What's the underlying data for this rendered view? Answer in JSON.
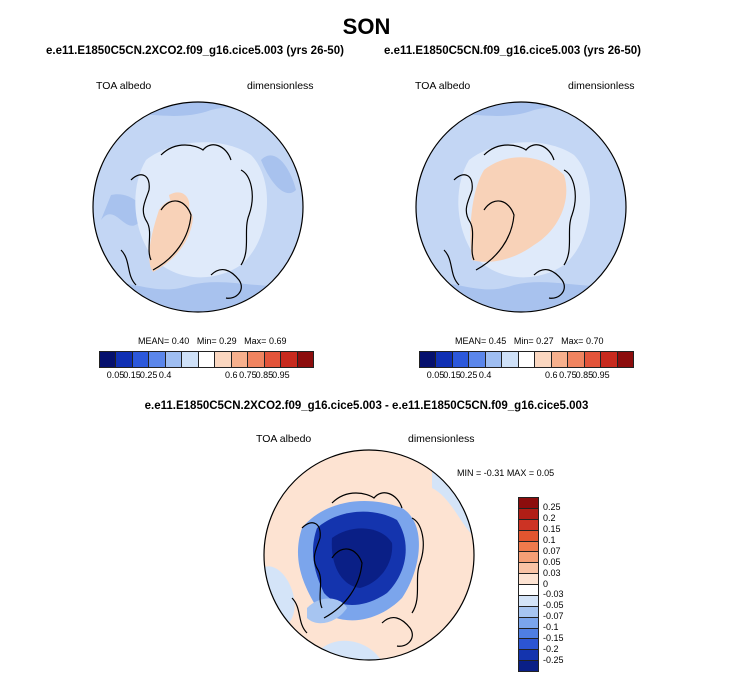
{
  "title": "SON",
  "panels": [
    {
      "case": "e.e11.E1850C5CN.2XCO2.f09_g16.cice5.003 (yrs 26-50)",
      "variable": "TOA albedo",
      "units": "dimensionless",
      "stats": {
        "mean_label": "MEAN=",
        "mean": "0.40",
        "min_label": "Min=",
        "min": "0.29",
        "max_label": "Max=",
        "max": "0.69"
      }
    },
    {
      "case": "e.e11.E1850C5CN.f09_g16.cice5.003 (yrs 26-50)",
      "variable": "TOA albedo",
      "units": "dimensionless",
      "stats": {
        "mean_label": "MEAN=",
        "mean": "0.45",
        "min_label": "Min=",
        "min": "0.27",
        "max_label": "Max=",
        "max": "0.70"
      }
    }
  ],
  "colorbar": {
    "labels": [
      "0.05",
      "0.15",
      "0.25",
      "0.4",
      "0.6",
      "0.75",
      "0.85",
      "0.95"
    ],
    "colors": [
      "#05106e",
      "#1030b4",
      "#2c58db",
      "#5b86ea",
      "#9fbef2",
      "#cfe1f8",
      "#ffffff",
      "#fbd7c0",
      "#f7b08d",
      "#f08460",
      "#e3543a",
      "#c72a1e",
      "#8c0d0d"
    ]
  },
  "diff": {
    "title": "e.e11.E1850C5CN.2XCO2.f09_g16.cice5.003 - e.e11.E1850C5CN.f09_g16.cice5.003",
    "variable": "TOA albedo",
    "units": "dimensionless",
    "stats": {
      "min_label": "MIN =",
      "min": "-0.31",
      "max_label": "MAX =",
      "max": "0.05"
    },
    "colorbar_labels": [
      "0.25",
      "0.2",
      "0.15",
      "0.1",
      "0.07",
      "0.05",
      "0.03",
      "0",
      "-0.03",
      "-0.05",
      "-0.07",
      "-0.1",
      "-0.15",
      "-0.2",
      "-0.25"
    ],
    "colorbar_colors": [
      "#8c0d0d",
      "#b01e16",
      "#cc3324",
      "#e2552f",
      "#ef7a4c",
      "#f59f76",
      "#f9c3a5",
      "#fde3d2",
      "#ffffff",
      "#d4e4f8",
      "#a7c5f1",
      "#7ba5ec",
      "#4f7ee2",
      "#2c55d2",
      "#1434ae",
      "#0a1f86"
    ]
  }
}
